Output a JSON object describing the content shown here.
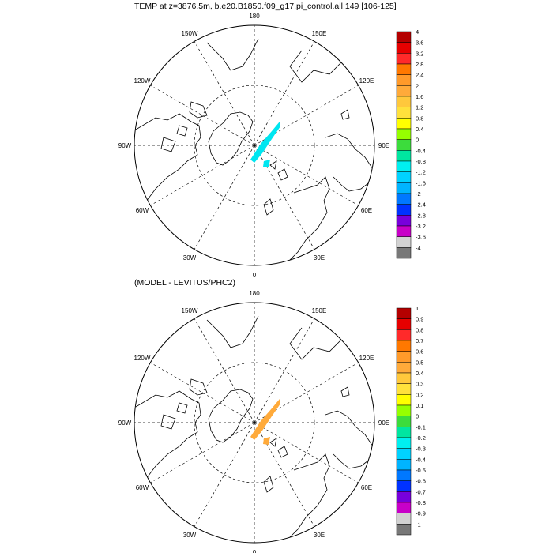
{
  "titles": {
    "top": "TEMP at z=3876.5m, b.e20.B1850.f09_g17.pi_control.all.149 [106-125]",
    "bottom": "(MODEL - LEVITUS/PHC2)"
  },
  "map_labels": {
    "top": [
      "180",
      "150E",
      "120E",
      "90E",
      "60E",
      "30E",
      "0",
      "30W",
      "60W",
      "90W",
      "120W",
      "150W"
    ],
    "bottom": [
      "180",
      "150E",
      "120E",
      "90E",
      "60E",
      "30E",
      "0",
      "30W",
      "60W",
      "90W",
      "120W",
      "150W"
    ]
  },
  "colorbars": {
    "top": {
      "labels": [
        "4",
        "3.6",
        "3.2",
        "2.8",
        "2.4",
        "2",
        "1.6",
        "1.2",
        "0.8",
        "0.4",
        "0",
        "-0.4",
        "-0.8",
        "-1.2",
        "-1.6",
        "-2",
        "-2.4",
        "-2.8",
        "-3.2",
        "-3.6",
        "-4"
      ]
    },
    "bottom": {
      "labels": [
        "1",
        "0.9",
        "0.8",
        "0.7",
        "0.6",
        "0.5",
        "0.4",
        "0.3",
        "0.2",
        "0.1",
        "0",
        "-0.1",
        "-0.2",
        "-0.3",
        "-0.4",
        "-0.5",
        "-0.6",
        "-0.7",
        "-0.8",
        "-0.9",
        "-1"
      ]
    },
    "colors": [
      "#b40000",
      "#e60000",
      "#ff2a2a",
      "#ff7800",
      "#ff9a2a",
      "#ffaa3a",
      "#ffc83c",
      "#ffe13c",
      "#ffff00",
      "#96ff00",
      "#3cdc3c",
      "#00e6a0",
      "#00f0f0",
      "#00d2ff",
      "#00b4ff",
      "#0078ff",
      "#0032ff",
      "#7800dc",
      "#c800c8",
      "#d2d2d2",
      "#787878"
    ]
  },
  "fields": {
    "top": {
      "patch_color": "#00e6f0"
    },
    "bottom": {
      "patch_color": "#ffaa3a"
    }
  }
}
